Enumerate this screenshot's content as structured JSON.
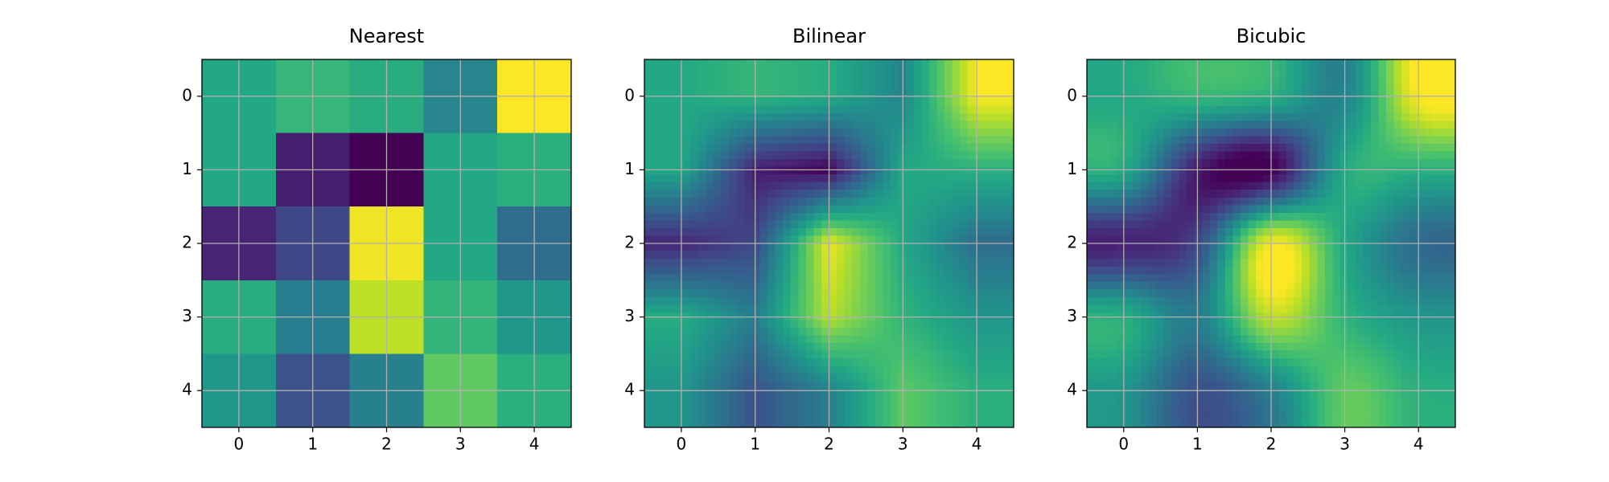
{
  "chart_data": [
    {
      "type": "heatmap",
      "title": "Nearest",
      "interpolation": "nearest",
      "colormap": "viridis",
      "grid": true,
      "values": [
        [
          0.6,
          0.66,
          0.62,
          0.45,
          1.0
        ],
        [
          0.6,
          0.08,
          0.0,
          0.6,
          0.63
        ],
        [
          0.1,
          0.22,
          0.98,
          0.6,
          0.35
        ],
        [
          0.62,
          0.42,
          0.9,
          0.65,
          0.52
        ],
        [
          0.52,
          0.25,
          0.43,
          0.75,
          0.63
        ]
      ],
      "xlim": [
        -0.5,
        4.5
      ],
      "ylim": [
        4.5,
        -0.5
      ],
      "xticks": [
        0,
        1,
        2,
        3,
        4
      ],
      "yticks": [
        0,
        1,
        2,
        3,
        4
      ]
    },
    {
      "type": "heatmap",
      "title": "Bilinear",
      "interpolation": "bilinear",
      "colormap": "viridis",
      "grid": true,
      "values": [
        [
          0.6,
          0.66,
          0.62,
          0.45,
          1.0
        ],
        [
          0.6,
          0.08,
          0.0,
          0.6,
          0.63
        ],
        [
          0.1,
          0.22,
          0.98,
          0.6,
          0.35
        ],
        [
          0.62,
          0.42,
          0.9,
          0.65,
          0.52
        ],
        [
          0.52,
          0.25,
          0.43,
          0.75,
          0.63
        ]
      ],
      "xlim": [
        -0.5,
        4.5
      ],
      "ylim": [
        4.5,
        -0.5
      ],
      "xticks": [
        0,
        1,
        2,
        3,
        4
      ],
      "yticks": [
        0,
        1,
        2,
        3,
        4
      ]
    },
    {
      "type": "heatmap",
      "title": "Bicubic",
      "interpolation": "bicubic",
      "colormap": "viridis",
      "grid": true,
      "values": [
        [
          0.6,
          0.66,
          0.62,
          0.45,
          1.0
        ],
        [
          0.6,
          0.08,
          0.0,
          0.6,
          0.63
        ],
        [
          0.1,
          0.22,
          0.98,
          0.6,
          0.35
        ],
        [
          0.62,
          0.42,
          0.9,
          0.65,
          0.52
        ],
        [
          0.52,
          0.25,
          0.43,
          0.75,
          0.63
        ]
      ],
      "xlim": [
        -0.5,
        4.5
      ],
      "ylim": [
        4.5,
        -0.5
      ],
      "xticks": [
        0,
        1,
        2,
        3,
        4
      ],
      "yticks": [
        0,
        1,
        2,
        3,
        4
      ]
    }
  ]
}
